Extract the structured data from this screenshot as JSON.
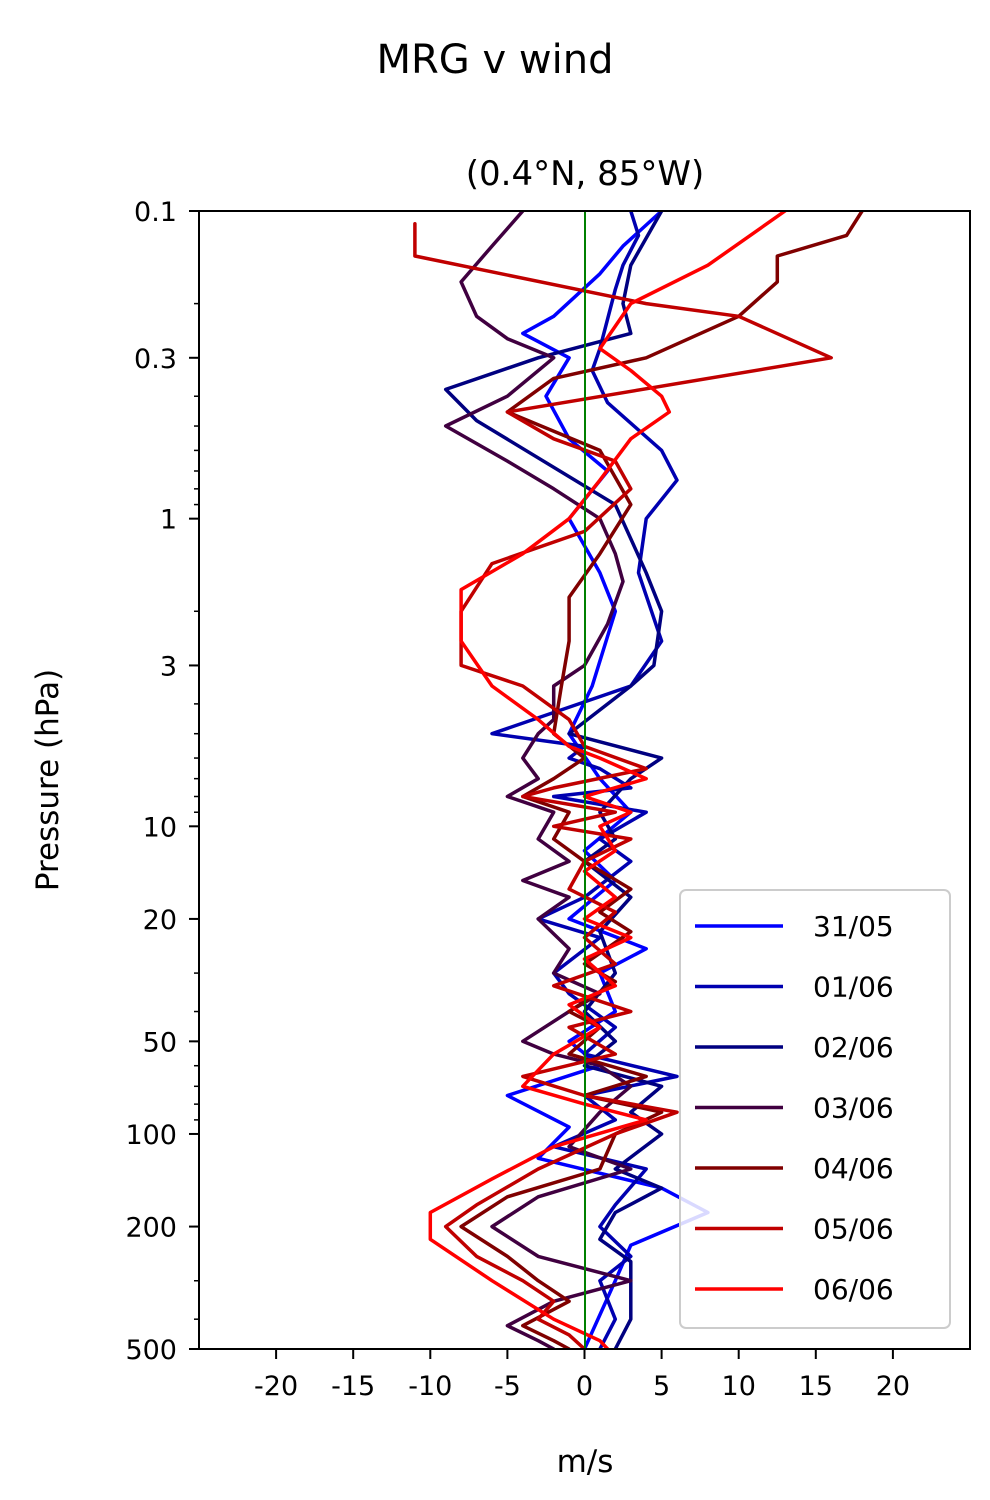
{
  "chart_data": {
    "type": "line",
    "suptitle": "MRG v wind",
    "title": "(0.4°N, 85°W)",
    "xlabel": "m/s",
    "ylabel": "Pressure (hPa)",
    "xlim": [
      -25,
      25
    ],
    "ylim": [
      500,
      0.1
    ],
    "yscale": "log",
    "xticks": [
      -20,
      -15,
      -10,
      -5,
      0,
      5,
      10,
      15,
      20
    ],
    "xtick_labels": [
      "-20",
      "-15",
      "-10",
      "-5",
      "0",
      "5",
      "10",
      "15",
      "20"
    ],
    "yticks": [
      0.1,
      0.3,
      1,
      3,
      10,
      20,
      50,
      100,
      200,
      500
    ],
    "ytick_labels": [
      "0.1",
      "0.3",
      "1",
      "3",
      "10",
      "20",
      "50",
      "100",
      "200",
      "500"
    ],
    "reference_line": {
      "x": 0,
      "color": "#008000"
    },
    "legend_position": "lower right",
    "series": [
      {
        "name": "31/05",
        "color": "#0000ff",
        "points": [
          [
            5,
            0.1
          ],
          [
            2.5,
            0.13
          ],
          [
            1,
            0.16
          ],
          [
            -2,
            0.22
          ],
          [
            -4,
            0.25
          ],
          [
            -1,
            0.3
          ],
          [
            -2.5,
            0.4
          ],
          [
            -1,
            0.55
          ],
          [
            1.5,
            0.7
          ],
          [
            -1,
            1
          ],
          [
            1,
            1.5
          ],
          [
            2,
            2
          ],
          [
            0.5,
            3.5
          ],
          [
            -1,
            5
          ],
          [
            1,
            7
          ],
          [
            3,
            9
          ],
          [
            0,
            12
          ],
          [
            2,
            15
          ],
          [
            -1,
            20
          ],
          [
            4,
            25
          ],
          [
            1,
            30
          ],
          [
            2,
            40
          ],
          [
            -1,
            50
          ],
          [
            1,
            60
          ],
          [
            -5,
            75
          ],
          [
            -1,
            95
          ],
          [
            -3,
            120
          ],
          [
            5,
            150
          ],
          [
            8,
            180
          ],
          [
            3,
            230
          ],
          [
            2,
            300
          ],
          [
            0,
            500
          ]
        ]
      },
      {
        "name": "01/06",
        "color": "#0000b0",
        "points": [
          [
            3,
            0.1
          ],
          [
            3.5,
            0.12
          ],
          [
            2.5,
            0.15
          ],
          [
            2,
            0.18
          ],
          [
            1,
            0.28
          ],
          [
            0.5,
            0.33
          ],
          [
            1.5,
            0.42
          ],
          [
            5,
            0.6
          ],
          [
            6,
            0.75
          ],
          [
            4,
            1
          ],
          [
            3.5,
            1.5
          ],
          [
            5,
            2.5
          ],
          [
            3,
            3.5
          ],
          [
            -6,
            5
          ],
          [
            0,
            5.5
          ],
          [
            -1,
            6
          ],
          [
            1,
            6.5
          ],
          [
            3,
            7.5
          ],
          [
            -2,
            8
          ],
          [
            4,
            9
          ],
          [
            1,
            11
          ],
          [
            3,
            13
          ],
          [
            0,
            17
          ],
          [
            -3,
            20
          ],
          [
            1,
            23
          ],
          [
            -2,
            30
          ],
          [
            -1,
            35
          ],
          [
            2,
            45
          ],
          [
            0,
            55
          ],
          [
            6,
            65
          ],
          [
            0,
            75
          ],
          [
            2,
            90
          ],
          [
            -2,
            110
          ],
          [
            4,
            130
          ],
          [
            2,
            170
          ],
          [
            1,
            200
          ],
          [
            3,
            250
          ],
          [
            1,
            300
          ],
          [
            2,
            400
          ],
          [
            1,
            500
          ]
        ]
      },
      {
        "name": "02/06",
        "color": "#000080",
        "points": [
          [
            5,
            0.1
          ],
          [
            3,
            0.15
          ],
          [
            2.5,
            0.2
          ],
          [
            3,
            0.25
          ],
          [
            -3,
            0.3
          ],
          [
            -9,
            0.38
          ],
          [
            -7,
            0.48
          ],
          [
            2,
            0.9
          ],
          [
            4,
            1.5
          ],
          [
            5,
            2
          ],
          [
            4.5,
            3
          ],
          [
            3,
            3.5
          ],
          [
            -1,
            5
          ],
          [
            5,
            6
          ],
          [
            3,
            7
          ],
          [
            1,
            9
          ],
          [
            2,
            11
          ],
          [
            0,
            13
          ],
          [
            3,
            17
          ],
          [
            1,
            22
          ],
          [
            2,
            30
          ],
          [
            0,
            40
          ],
          [
            2,
            50
          ],
          [
            0,
            60
          ],
          [
            5,
            70
          ],
          [
            3,
            85
          ],
          [
            5,
            100
          ],
          [
            2,
            130
          ],
          [
            5,
            150
          ],
          [
            2,
            180
          ],
          [
            1,
            220
          ],
          [
            3,
            260
          ],
          [
            3,
            400
          ],
          [
            2,
            500
          ]
        ]
      },
      {
        "name": "03/06",
        "color": "#400040",
        "points": [
          [
            -4,
            0.1
          ],
          [
            -6,
            0.13
          ],
          [
            -8,
            0.17
          ],
          [
            -7,
            0.22
          ],
          [
            -5,
            0.26
          ],
          [
            -2,
            0.3
          ],
          [
            -5,
            0.4
          ],
          [
            -9,
            0.5
          ],
          [
            -5,
            0.65
          ],
          [
            -2,
            0.8
          ],
          [
            1,
            1
          ],
          [
            2,
            1.3
          ],
          [
            2.5,
            1.6
          ],
          [
            1.5,
            2.2
          ],
          [
            0,
            3
          ],
          [
            -2,
            3.5
          ],
          [
            -2,
            4.5
          ],
          [
            -3,
            5
          ],
          [
            -4,
            6
          ],
          [
            -3,
            7
          ],
          [
            -5,
            8
          ],
          [
            -2,
            9
          ],
          [
            -3,
            11
          ],
          [
            -1,
            13
          ],
          [
            -4,
            15
          ],
          [
            -1,
            17
          ],
          [
            -3,
            20
          ],
          [
            -1,
            25
          ],
          [
            -2,
            30
          ],
          [
            1,
            35
          ],
          [
            -1,
            40
          ],
          [
            -4,
            50
          ],
          [
            -2,
            55
          ],
          [
            1,
            60
          ],
          [
            3,
            70
          ],
          [
            1,
            85
          ],
          [
            -1,
            110
          ],
          [
            3,
            130
          ],
          [
            -3,
            160
          ],
          [
            -6,
            200
          ],
          [
            -3,
            250
          ],
          [
            3,
            300
          ],
          [
            -2,
            350
          ],
          [
            -5,
            420
          ],
          [
            -3,
            470
          ],
          [
            -2,
            500
          ]
        ]
      },
      {
        "name": "04/06",
        "color": "#800000",
        "points": [
          [
            18,
            0.1
          ],
          [
            17,
            0.12
          ],
          [
            12.5,
            0.14
          ],
          [
            12.5,
            0.17
          ],
          [
            10,
            0.22
          ],
          [
            4,
            0.3
          ],
          [
            -2,
            0.35
          ],
          [
            -5,
            0.45
          ],
          [
            1,
            0.6
          ],
          [
            3,
            0.9
          ],
          [
            1,
            1.3
          ],
          [
            -1,
            1.8
          ],
          [
            -1,
            2.5
          ],
          [
            -1.5,
            3.5
          ],
          [
            -2,
            5
          ],
          [
            0,
            6
          ],
          [
            -2,
            7
          ],
          [
            -4,
            8
          ],
          [
            -1,
            9
          ],
          [
            -2,
            11
          ],
          [
            0,
            13
          ],
          [
            3,
            16
          ],
          [
            1,
            19
          ],
          [
            3,
            22
          ],
          [
            0,
            28
          ],
          [
            2,
            32
          ],
          [
            -1,
            40
          ],
          [
            1,
            45
          ],
          [
            -1,
            55
          ],
          [
            4,
            65
          ],
          [
            0,
            75
          ],
          [
            5,
            85
          ],
          [
            2,
            100
          ],
          [
            1,
            130
          ],
          [
            -5,
            160
          ],
          [
            -8,
            200
          ],
          [
            -5,
            250
          ],
          [
            -3,
            300
          ],
          [
            -1,
            350
          ],
          [
            -4,
            420
          ],
          [
            -2,
            470
          ],
          [
            -1,
            500
          ]
        ]
      },
      {
        "name": "05/06",
        "color": "#c00000",
        "points": [
          [
            -11,
            0.11
          ],
          [
            -11,
            0.14
          ],
          [
            4,
            0.2
          ],
          [
            10,
            0.22
          ],
          [
            16,
            0.3
          ],
          [
            -5,
            0.45
          ],
          [
            -2,
            0.55
          ],
          [
            2,
            0.65
          ],
          [
            3,
            0.8
          ],
          [
            0,
            1.1
          ],
          [
            -6,
            1.4
          ],
          [
            -8,
            2
          ],
          [
            -8,
            3
          ],
          [
            -4,
            3.5
          ],
          [
            -1,
            4.5
          ],
          [
            0,
            5.5
          ],
          [
            4,
            6.5
          ],
          [
            -2,
            7.5
          ],
          [
            -4,
            8
          ],
          [
            2,
            9
          ],
          [
            -2,
            10
          ],
          [
            3,
            11
          ],
          [
            0,
            13
          ],
          [
            -1,
            16
          ],
          [
            2,
            19
          ],
          [
            0,
            23
          ],
          [
            2,
            28
          ],
          [
            -2,
            33
          ],
          [
            3,
            40
          ],
          [
            -1,
            45
          ],
          [
            2,
            55
          ],
          [
            -4,
            65
          ],
          [
            0,
            75
          ],
          [
            6,
            85
          ],
          [
            2,
            100
          ],
          [
            -3,
            130
          ],
          [
            -7,
            170
          ],
          [
            -9,
            200
          ],
          [
            -7,
            250
          ],
          [
            -4,
            300
          ],
          [
            -2,
            350
          ],
          [
            -3,
            400
          ],
          [
            -1,
            450
          ],
          [
            0,
            500
          ]
        ]
      },
      {
        "name": "06/06",
        "color": "#ff0000",
        "points": [
          [
            13,
            0.1
          ],
          [
            8,
            0.15
          ],
          [
            3,
            0.2
          ],
          [
            1,
            0.28
          ],
          [
            3,
            0.33
          ],
          [
            5,
            0.4
          ],
          [
            5.5,
            0.45
          ],
          [
            3,
            0.55
          ],
          [
            1,
            0.75
          ],
          [
            -1,
            1
          ],
          [
            -4,
            1.3
          ],
          [
            -8,
            1.7
          ],
          [
            -8,
            2.5
          ],
          [
            -6,
            3.5
          ],
          [
            -3,
            4.5
          ],
          [
            -1,
            5.5
          ],
          [
            1,
            6
          ],
          [
            4,
            7
          ],
          [
            0,
            8
          ],
          [
            3,
            9
          ],
          [
            1,
            10
          ],
          [
            2,
            12
          ],
          [
            0,
            14
          ],
          [
            2,
            17
          ],
          [
            0,
            20
          ],
          [
            3,
            23
          ],
          [
            0,
            27
          ],
          [
            2,
            33
          ],
          [
            -1,
            38
          ],
          [
            1,
            45
          ],
          [
            -2,
            55
          ],
          [
            -4,
            70
          ],
          [
            0,
            80
          ],
          [
            4,
            90
          ],
          [
            -2,
            110
          ],
          [
            -6,
            140
          ],
          [
            -10,
            180
          ],
          [
            -10,
            220
          ],
          [
            -6,
            300
          ],
          [
            -2,
            400
          ],
          [
            1,
            470
          ],
          [
            1.5,
            500
          ]
        ]
      }
    ]
  }
}
